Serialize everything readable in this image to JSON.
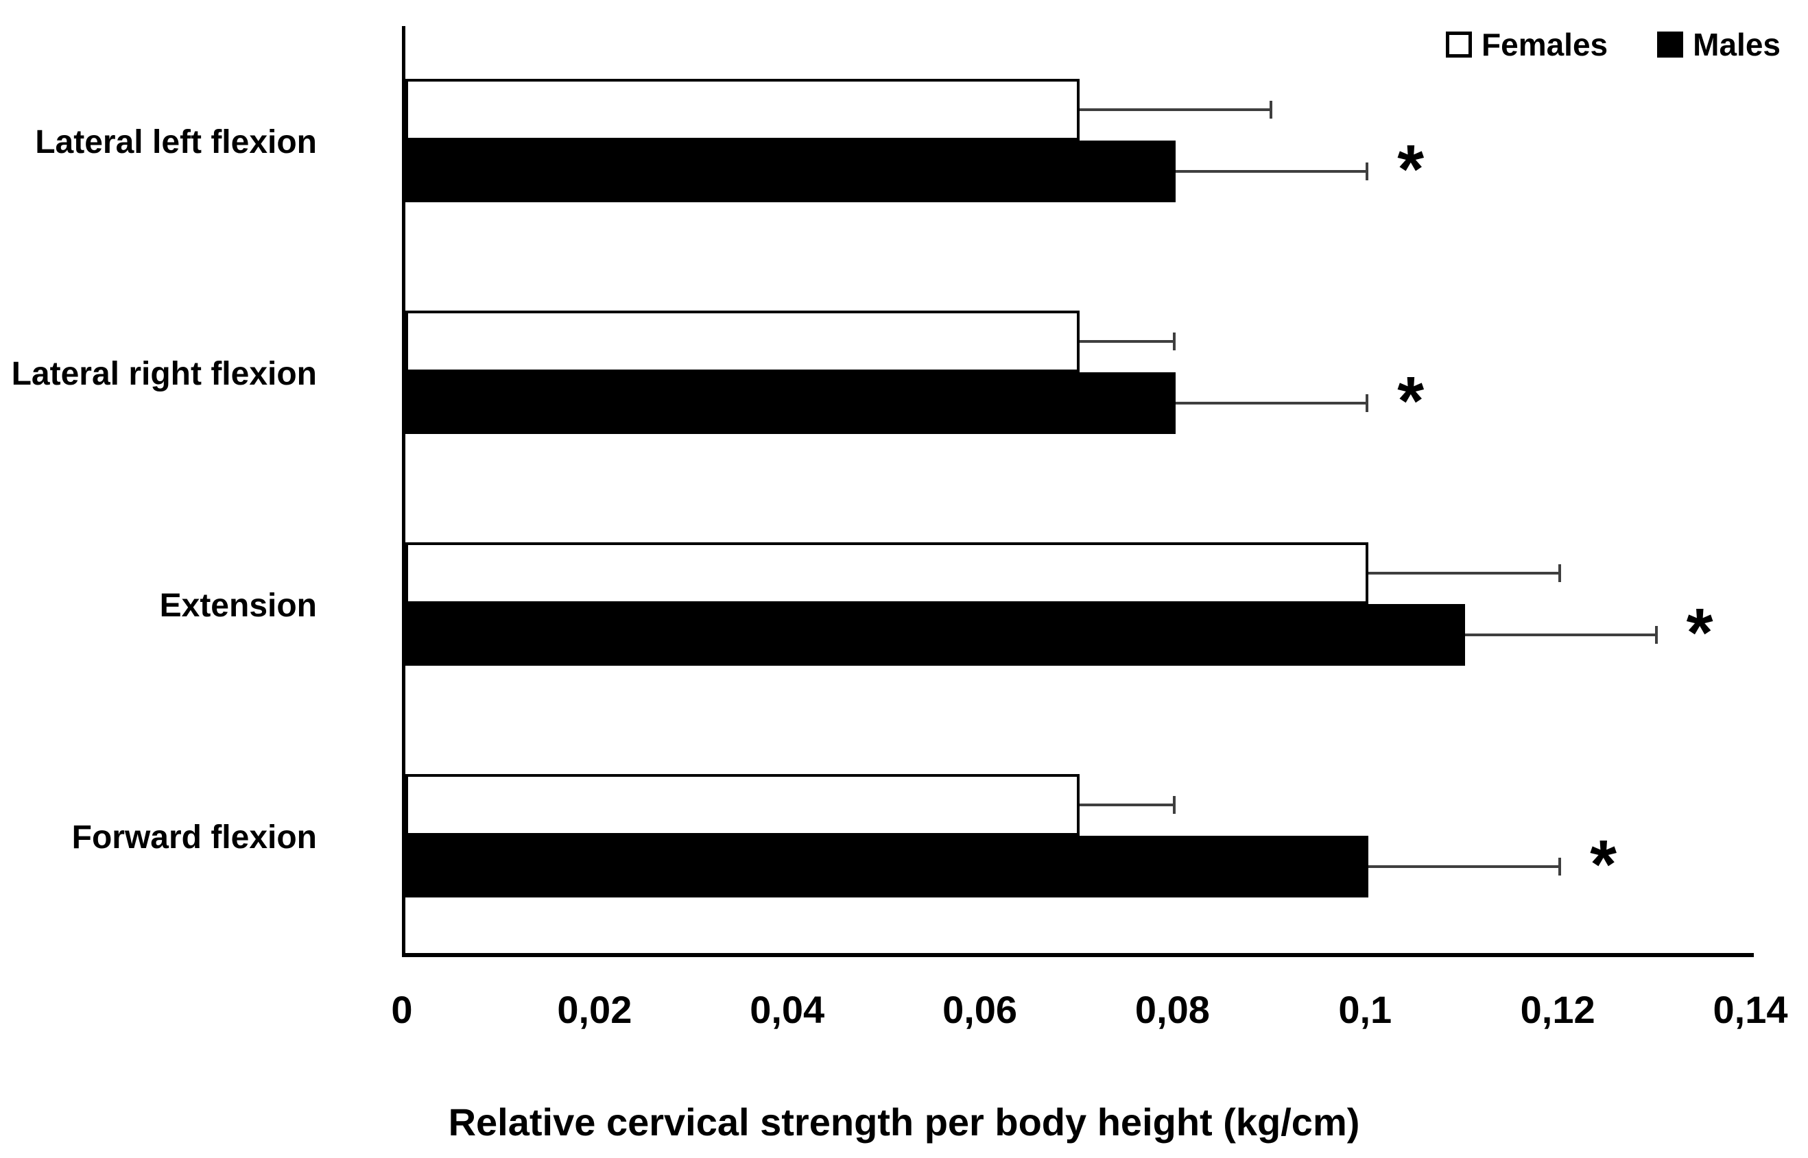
{
  "chart_data": {
    "type": "bar",
    "orientation": "horizontal",
    "title": "",
    "xlabel": "Relative cervical strength per body height (kg/cm)",
    "ylabel": "",
    "categories": [
      "Lateral left flexion",
      "Lateral right flexion",
      "Extension",
      "Forward flexion"
    ],
    "series": [
      {
        "name": "Females",
        "values": [
          0.07,
          0.07,
          0.1,
          0.07
        ],
        "error_plus": [
          0.02,
          0.01,
          0.02,
          0.01
        ],
        "fill": "#ffffff",
        "border": "#000000"
      },
      {
        "name": "Males",
        "values": [
          0.08,
          0.08,
          0.11,
          0.1
        ],
        "error_plus": [
          0.02,
          0.02,
          0.02,
          0.02
        ],
        "fill": "#000000",
        "border": "#000000"
      }
    ],
    "significance": {
      "marker": "*",
      "per_category": [
        true,
        true,
        true,
        true
      ],
      "applies_to": "Males"
    },
    "x_ticks": [
      {
        "label": "0",
        "value": 0
      },
      {
        "label": "0,02",
        "value": 0.02
      },
      {
        "label": "0,04",
        "value": 0.04
      },
      {
        "label": "0,06",
        "value": 0.06
      },
      {
        "label": "0,08",
        "value": 0.08
      },
      {
        "label": "0,1",
        "value": 0.1
      },
      {
        "label": "0,12",
        "value": 0.12
      },
      {
        "label": "0,14",
        "value": 0.14
      }
    ],
    "xlim": [
      0,
      0.14
    ],
    "grid": false,
    "decimal_separator": ",",
    "legend": {
      "position": "top-right",
      "entries": [
        {
          "label": "Females",
          "swatch": "outline"
        },
        {
          "label": "Males",
          "swatch": "filled"
        }
      ]
    },
    "colors": {
      "female_bar_fill": "#ffffff",
      "male_bar_fill": "#000000",
      "bar_border": "#000000",
      "error_bar": "#3f3f3f",
      "axis": "#000000",
      "text": "#000000",
      "background": "#ffffff"
    }
  }
}
